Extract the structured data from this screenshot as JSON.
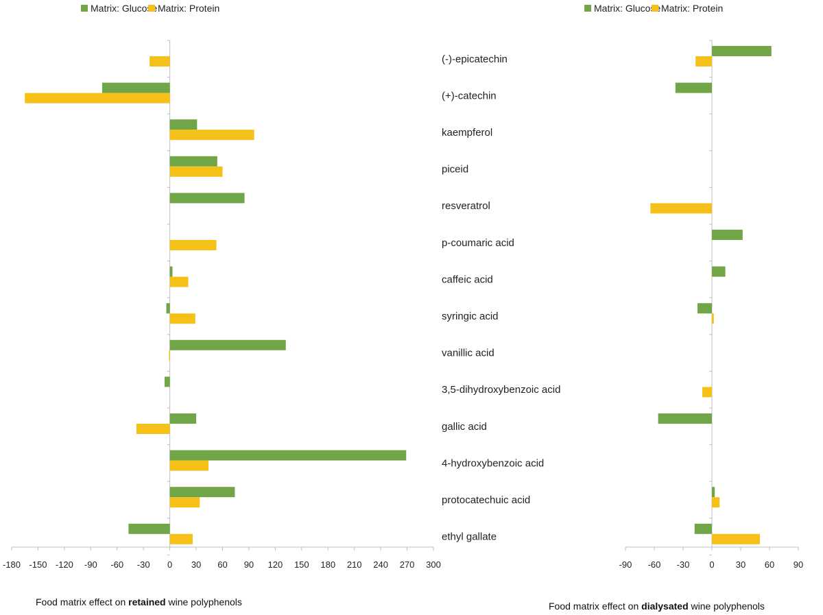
{
  "captions": {
    "left": {
      "prefix": "Food matrix effect on ",
      "bold": "retained",
      "suffix": " wine polyphenols"
    },
    "right": {
      "prefix": "Food matrix effect on ",
      "bold": "dialysated",
      "suffix": " wine polyphenols"
    }
  },
  "colors": {
    "glucose": "#70A548",
    "protein": "#F5C018",
    "axis": "#BFBFBF"
  },
  "chart_data": [
    {
      "type": "bar",
      "orientation": "horizontal",
      "categories": [
        "(-)-epicatechin",
        "(+)-catechin",
        "kaempferol",
        "piceid",
        "resveratrol",
        "p-coumaric acid",
        "caffeic acid",
        "syringic acid",
        "vanillic acid",
        "3,5-dihydroxybenzoic acid",
        "gallic acid",
        "4-hydroxybenzoic acid",
        "protocatechuic acid",
        "ethyl gallate"
      ],
      "series": [
        {
          "name": "Matrix: Glucose",
          "values": [
            0,
            -77,
            31,
            54,
            85,
            0,
            3,
            -4,
            132,
            -6,
            30,
            269,
            74,
            -47
          ]
        },
        {
          "name": "Matrix: Protein",
          "values": [
            -23,
            -165,
            96,
            60,
            0,
            53,
            21,
            29,
            -1,
            0,
            -38,
            44,
            34,
            26
          ]
        }
      ],
      "xlim": [
        -180,
        300
      ],
      "xticks": [
        "-180",
        "-150",
        "-120",
        "-90",
        "-60",
        "-30",
        "0",
        "30",
        "60",
        "90",
        "120",
        "150",
        "180",
        "210",
        "240",
        "270",
        "300"
      ],
      "legend": "top",
      "grid": false
    },
    {
      "type": "bar",
      "orientation": "horizontal",
      "categories": [
        "(-)-epicatechin",
        "(+)-catechin",
        "kaempferol",
        "piceid",
        "resveratrol",
        "p-coumaric acid",
        "caffeic acid",
        "syringic acid",
        "vanillic acid",
        "3,5-dihydroxybenzoic acid",
        "gallic acid",
        "4-hydroxybenzoic acid",
        "protocatechuic acid",
        "ethyl gallate"
      ],
      "series": [
        {
          "name": "Matrix: Glucose",
          "values": [
            62,
            -38,
            0,
            0,
            0,
            32,
            14,
            -15,
            0,
            0,
            -56,
            0,
            3,
            -18
          ]
        },
        {
          "name": "Matrix: Protein",
          "values": [
            -17,
            0,
            0,
            0,
            -64,
            0,
            0,
            2,
            0,
            -10,
            0,
            0,
            8,
            50
          ]
        }
      ],
      "xlim": [
        -90,
        90
      ],
      "xticks": [
        "-90",
        "-60",
        "-30",
        "0",
        "30",
        "60",
        "90"
      ],
      "legend": "top",
      "grid": false
    }
  ]
}
